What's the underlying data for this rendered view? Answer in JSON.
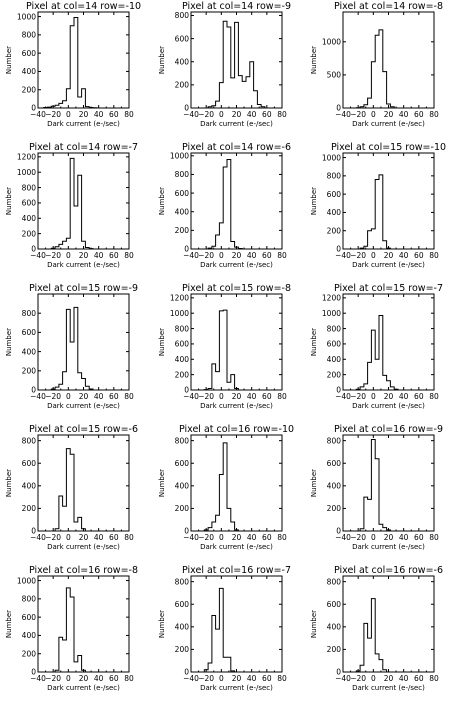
{
  "chart_data": [
    {
      "type": "step",
      "title": "Pixel at col=14 row=-10",
      "xlabel": "Dark current (e-/sec)",
      "ylabel": "Number",
      "xlim": [
        -40,
        80
      ],
      "ylim": [
        0,
        1050
      ],
      "yticks": [
        0,
        200,
        400,
        600,
        800,
        1000
      ],
      "xticks": [
        -40,
        -20,
        0,
        20,
        40,
        60,
        80
      ],
      "bin_width": 5,
      "x": [
        -30,
        -25,
        -20,
        -15,
        -10,
        -5,
        0,
        5,
        10,
        15,
        20,
        25,
        30,
        35,
        40,
        45
      ],
      "values": [
        5,
        10,
        20,
        30,
        50,
        80,
        210,
        900,
        990,
        120,
        210,
        15,
        5,
        2,
        0,
        0
      ]
    },
    {
      "type": "step",
      "title": "Pixel at col=14 row=-9",
      "xlabel": "Dark current (e-/sec)",
      "ylabel": "Number",
      "xlim": [
        -40,
        80
      ],
      "ylim": [
        0,
        830
      ],
      "yticks": [
        0,
        200,
        400,
        600,
        800
      ],
      "xticks": [
        -40,
        -20,
        0,
        20,
        40,
        60,
        80
      ],
      "bin_width": 5,
      "x": [
        -30,
        -25,
        -20,
        -15,
        -10,
        -5,
        0,
        5,
        10,
        15,
        20,
        25,
        30,
        35,
        40,
        45,
        50,
        55,
        60,
        65
      ],
      "values": [
        0,
        0,
        0,
        10,
        20,
        60,
        220,
        750,
        700,
        260,
        740,
        280,
        230,
        270,
        400,
        150,
        30,
        10,
        0,
        0
      ]
    },
    {
      "type": "step",
      "title": "Pixel at col=14 row=-8",
      "xlabel": "Dark current (e-/sec)",
      "ylabel": "Number",
      "xlim": [
        -40,
        80
      ],
      "ylim": [
        0,
        1450
      ],
      "yticks": [
        0,
        500,
        1000
      ],
      "xticks": [
        -40,
        -20,
        0,
        20,
        40,
        60,
        80
      ],
      "bin_width": 5,
      "x": [
        -20,
        -15,
        -10,
        -5,
        0,
        5,
        10,
        15,
        20,
        25,
        30
      ],
      "values": [
        5,
        20,
        50,
        150,
        700,
        1100,
        1180,
        550,
        60,
        20,
        0
      ]
    },
    {
      "type": "step",
      "title": "Pixel at col=14 row=-7",
      "xlabel": "Dark current (e-/sec)",
      "ylabel": "Number",
      "xlim": [
        -40,
        80
      ],
      "ylim": [
        0,
        1250
      ],
      "yticks": [
        0,
        200,
        400,
        600,
        800,
        1000,
        1200
      ],
      "xticks": [
        -40,
        -20,
        0,
        20,
        40,
        60,
        80
      ],
      "bin_width": 5,
      "x": [
        -20,
        -15,
        -10,
        -5,
        0,
        5,
        10,
        15,
        20,
        25,
        30
      ],
      "values": [
        10,
        30,
        60,
        100,
        140,
        1180,
        560,
        960,
        100,
        20,
        5
      ]
    },
    {
      "type": "step",
      "title": "Pixel at col=14 row=-6",
      "xlabel": "Dark current (e-/sec)",
      "ylabel": "Number",
      "xlim": [
        -40,
        80
      ],
      "ylim": [
        0,
        1030
      ],
      "yticks": [
        0,
        200,
        400,
        600,
        800,
        1000
      ],
      "xticks": [
        -40,
        -20,
        0,
        20,
        40,
        60,
        80
      ],
      "bin_width": 5,
      "x": [
        -20,
        -15,
        -10,
        -5,
        0,
        5,
        10,
        15,
        20,
        25,
        30
      ],
      "values": [
        0,
        10,
        30,
        150,
        280,
        880,
        960,
        80,
        20,
        5,
        0
      ]
    },
    {
      "type": "step",
      "title": "Pixel at col=15 row=-10",
      "xlabel": "Dark current (e-/sec)",
      "ylabel": "Number",
      "xlim": [
        -40,
        80
      ],
      "ylim": [
        0,
        1050
      ],
      "yticks": [
        0,
        200,
        400,
        600,
        800,
        1000
      ],
      "xticks": [
        -40,
        -20,
        0,
        20,
        40,
        60,
        80
      ],
      "bin_width": 5,
      "x": [
        -20,
        -15,
        -10,
        -5,
        0,
        5,
        10,
        15,
        20,
        25
      ],
      "values": [
        0,
        10,
        30,
        200,
        220,
        760,
        810,
        90,
        10,
        0
      ]
    },
    {
      "type": "step",
      "title": "Pixel at col=15 row=-9",
      "xlabel": "Dark current (e-/sec)",
      "ylabel": "Number",
      "xlim": [
        -40,
        80
      ],
      "ylim": [
        0,
        1000
      ],
      "yticks": [
        0,
        200,
        400,
        600,
        800
      ],
      "xticks": [
        -40,
        -20,
        0,
        20,
        40,
        60,
        80
      ],
      "bin_width": 5,
      "x": [
        -20,
        -15,
        -10,
        -5,
        0,
        5,
        10,
        15,
        20,
        25,
        30
      ],
      "values": [
        10,
        30,
        60,
        190,
        840,
        500,
        860,
        180,
        120,
        40,
        10
      ]
    },
    {
      "type": "step",
      "title": "Pixel at col=15 row=-8",
      "xlabel": "Dark current (e-/sec)",
      "ylabel": "Number",
      "xlim": [
        -40,
        80
      ],
      "ylim": [
        0,
        1250
      ],
      "yticks": [
        0,
        200,
        400,
        600,
        800,
        1000,
        1200
      ],
      "xticks": [
        -40,
        -20,
        0,
        20,
        40,
        60,
        80
      ],
      "bin_width": 5,
      "x": [
        -20,
        -15,
        -10,
        -5,
        0,
        5,
        10,
        15,
        20,
        25
      ],
      "values": [
        5,
        20,
        340,
        240,
        1030,
        1040,
        100,
        200,
        20,
        0
      ]
    },
    {
      "type": "step",
      "title": "Pixel at col=15 row=-7",
      "xlabel": "Dark current (e-/sec)",
      "ylabel": "Number",
      "xlim": [
        -40,
        80
      ],
      "ylim": [
        0,
        1250
      ],
      "yticks": [
        0,
        200,
        400,
        600,
        800,
        1000,
        1200
      ],
      "xticks": [
        -40,
        -20,
        0,
        20,
        40,
        60,
        80
      ],
      "bin_width": 5,
      "x": [
        -20,
        -15,
        -10,
        -5,
        0,
        5,
        10,
        15,
        20,
        25,
        30
      ],
      "values": [
        10,
        40,
        80,
        360,
        780,
        400,
        970,
        190,
        120,
        40,
        10
      ]
    },
    {
      "type": "step",
      "title": "Pixel at col=15 row=-6",
      "xlabel": "Dark current (e-/sec)",
      "ylabel": "Number",
      "xlim": [
        -40,
        80
      ],
      "ylim": [
        0,
        850
      ],
      "yticks": [
        0,
        200,
        400,
        600,
        800
      ],
      "xticks": [
        -40,
        -20,
        0,
        20,
        40,
        60,
        80
      ],
      "bin_width": 5,
      "x": [
        -20,
        -15,
        -10,
        -5,
        0,
        5,
        10,
        15,
        20,
        25
      ],
      "values": [
        0,
        20,
        310,
        220,
        730,
        680,
        80,
        120,
        20,
        0
      ]
    },
    {
      "type": "step",
      "title": "Pixel at col=16 row=-10",
      "xlabel": "Dark current (e-/sec)",
      "ylabel": "Number",
      "xlim": [
        -40,
        80
      ],
      "ylim": [
        0,
        850
      ],
      "yticks": [
        0,
        200,
        400,
        600,
        800
      ],
      "xticks": [
        -40,
        -20,
        0,
        20,
        40,
        60,
        80
      ],
      "bin_width": 5,
      "x": [
        -25,
        -20,
        -15,
        -10,
        -5,
        0,
        5,
        10,
        15,
        20,
        25
      ],
      "values": [
        0,
        10,
        30,
        80,
        140,
        500,
        780,
        200,
        80,
        10,
        0
      ]
    },
    {
      "type": "step",
      "title": "Pixel at col=16 row=-9",
      "xlabel": "Dark current (e-/sec)",
      "ylabel": "Number",
      "xlim": [
        -40,
        80
      ],
      "ylim": [
        0,
        850
      ],
      "yticks": [
        0,
        200,
        400,
        600,
        800
      ],
      "xticks": [
        -40,
        -20,
        0,
        20,
        40,
        60,
        80
      ],
      "bin_width": 5,
      "x": [
        -20,
        -15,
        -10,
        -5,
        0,
        5,
        10,
        15,
        20,
        25
      ],
      "values": [
        0,
        20,
        300,
        280,
        810,
        640,
        60,
        30,
        10,
        0
      ]
    },
    {
      "type": "step",
      "title": "Pixel at col=16 row=-8",
      "xlabel": "Dark current (e-/sec)",
      "ylabel": "Number",
      "xlim": [
        -40,
        80
      ],
      "ylim": [
        0,
        1050
      ],
      "yticks": [
        0,
        200,
        400,
        600,
        800,
        1000
      ],
      "xticks": [
        -40,
        -20,
        0,
        20,
        40,
        60,
        80
      ],
      "bin_width": 5,
      "x": [
        -20,
        -15,
        -10,
        -5,
        0,
        5,
        10,
        15,
        20,
        25
      ],
      "values": [
        0,
        20,
        380,
        350,
        920,
        820,
        110,
        180,
        20,
        0
      ]
    },
    {
      "type": "step",
      "title": "Pixel at col=16 row=-7",
      "xlabel": "Dark current (e-/sec)",
      "ylabel": "Number",
      "xlim": [
        -40,
        80
      ],
      "ylim": [
        0,
        850
      ],
      "yticks": [
        0,
        200,
        400,
        600,
        800
      ],
      "xticks": [
        -40,
        -20,
        0,
        20,
        40,
        60,
        80
      ],
      "bin_width": 5,
      "x": [
        -25,
        -20,
        -15,
        -10,
        -5,
        0,
        5,
        10,
        15,
        20
      ],
      "values": [
        0,
        20,
        80,
        500,
        380,
        740,
        130,
        130,
        10,
        0
      ]
    },
    {
      "type": "step",
      "title": "Pixel at col=16 row=-6",
      "xlabel": "Dark current (e-/sec)",
      "ylabel": "Number",
      "xlim": [
        -40,
        80
      ],
      "ylim": [
        0,
        850
      ],
      "yticks": [
        0,
        200,
        400,
        600,
        800
      ],
      "xticks": [
        -40,
        -20,
        0,
        20,
        40,
        60,
        80
      ],
      "bin_width": 5,
      "x": [
        -25,
        -20,
        -15,
        -10,
        -5,
        0,
        5,
        10,
        15,
        20
      ],
      "values": [
        0,
        10,
        60,
        430,
        300,
        650,
        160,
        110,
        20,
        0
      ]
    }
  ]
}
